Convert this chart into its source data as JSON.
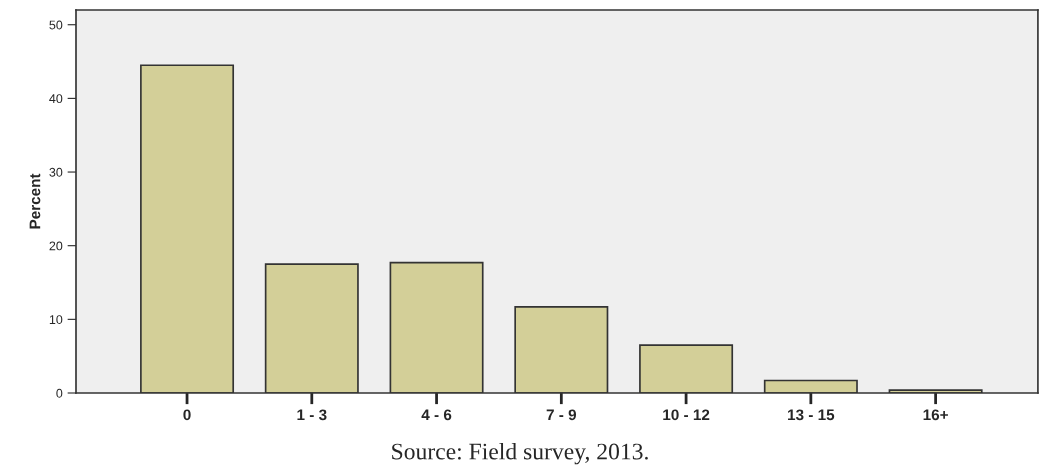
{
  "chart_data": {
    "type": "bar",
    "ylabel": "Percent",
    "categories": [
      "0",
      "1 - 3",
      "4 - 6",
      "7 - 9",
      "10 - 12",
      "13 - 15",
      "16+"
    ],
    "values": [
      44.5,
      17.5,
      17.7,
      11.7,
      6.5,
      1.7,
      0.4
    ],
    "color": "#d3cf98",
    "ylim": [
      0,
      52
    ],
    "yticks": [
      0,
      10,
      20,
      30,
      40,
      50
    ],
    "grid": false,
    "legend": false,
    "annotations": [
      "Source: Field survey, 2013."
    ]
  }
}
